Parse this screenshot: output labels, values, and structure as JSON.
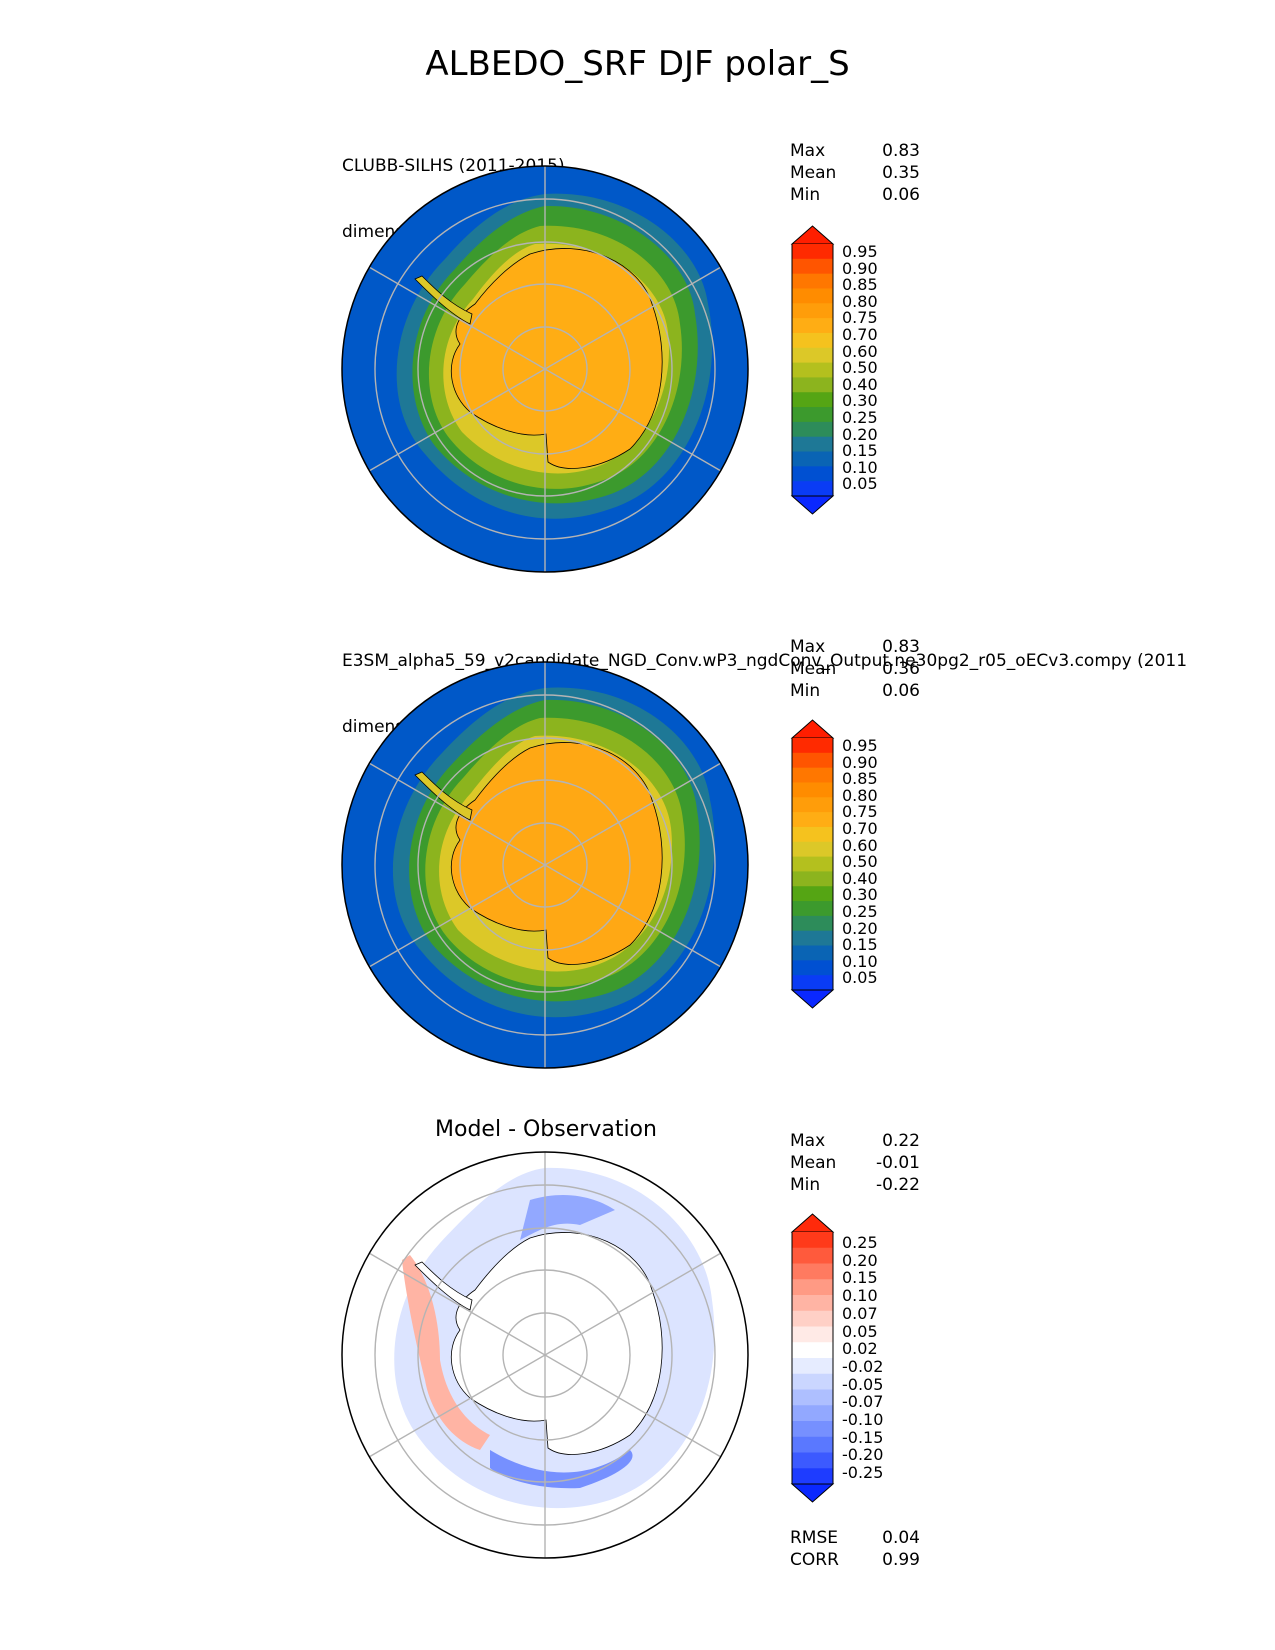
{
  "title": "ALBEDO_SRF DJF polar_S",
  "panels": [
    {
      "id": "test",
      "title_line1": "CLUBB-SILHS (2011-2015)",
      "title_line2": "dimensionless",
      "stats": [
        {
          "label": "Max",
          "value": "0.83"
        },
        {
          "label": "Mean",
          "value": "0.35"
        },
        {
          "label": "Min",
          "value": "0.06"
        }
      ]
    },
    {
      "id": "reference",
      "title_line1": "E3SM_alpha5_59_v2candidate_NGD_Conv.wP3_ngdConv_Output.ne30pg2_r05_oECv3.compy (2011",
      "title_line2": "dimensionless",
      "stats": [
        {
          "label": "Max",
          "value": "0.83"
        },
        {
          "label": "Mean",
          "value": "0.36"
        },
        {
          "label": "Min",
          "value": "0.06"
        }
      ]
    },
    {
      "id": "diff",
      "title_center": "Model - Observation",
      "stats": [
        {
          "label": "Max",
          "value": "0.22"
        },
        {
          "label": "Mean",
          "value": "-0.01"
        },
        {
          "label": "Min",
          "value": "-0.22"
        }
      ],
      "metrics": [
        {
          "label": "RMSE",
          "value": "0.04"
        },
        {
          "label": "CORR",
          "value": "0.99"
        }
      ]
    }
  ],
  "colorbar_main": {
    "labels": [
      "0.95",
      "0.90",
      "0.85",
      "0.80",
      "0.75",
      "0.70",
      "0.60",
      "0.50",
      "0.40",
      "0.30",
      "0.25",
      "0.20",
      "0.15",
      "0.10",
      "0.05"
    ],
    "colors": [
      "#ff2a00",
      "#ff5500",
      "#ff7700",
      "#ff8c00",
      "#ff9d0a",
      "#ffad14",
      "#f5c21e",
      "#dcc828",
      "#b4c01e",
      "#8cb41e",
      "#55a514",
      "#3c9a2d",
      "#2d8c5a",
      "#1e7896",
      "#0a64b4",
      "#0050d2",
      "#0a3cf5"
    ],
    "min_color": "#0a28ff",
    "max_color": "#ff1e00"
  },
  "colorbar_diff": {
    "labels": [
      "0.25",
      "0.20",
      "0.15",
      "0.10",
      "0.07",
      "0.05",
      "0.02",
      "-0.02",
      "-0.05",
      "-0.07",
      "-0.10",
      "-0.15",
      "-0.20",
      "-0.25"
    ],
    "colors": [
      "#ff3a1a",
      "#ff5a3c",
      "#ff7a60",
      "#ff9a84",
      "#ffb4a4",
      "#ffd0c6",
      "#ffeae6",
      "#ffffff",
      "#e6ecff",
      "#cad6ff",
      "#aebfff",
      "#92a8ff",
      "#7690ff",
      "#5a78ff",
      "#3c5aff",
      "#1e3cff"
    ],
    "min_color": "#0a28ff",
    "max_color": "#ff2a0a"
  }
}
